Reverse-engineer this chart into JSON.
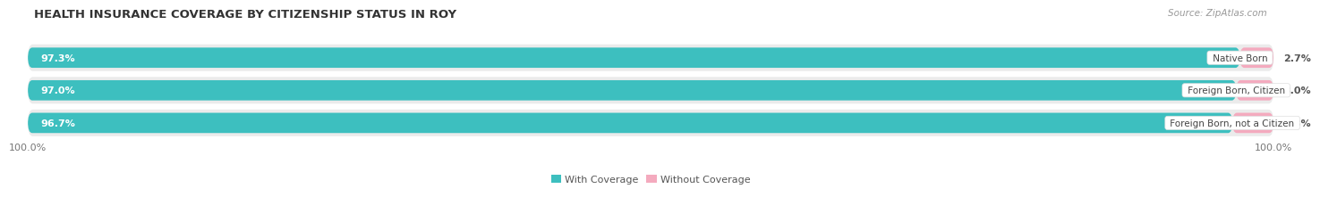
{
  "title": "HEALTH INSURANCE COVERAGE BY CITIZENSHIP STATUS IN ROY",
  "source": "Source: ZipAtlas.com",
  "categories": [
    "Native Born",
    "Foreign Born, Citizen",
    "Foreign Born, not a Citizen"
  ],
  "with_coverage": [
    97.3,
    97.0,
    96.7
  ],
  "without_coverage": [
    2.7,
    3.0,
    3.3
  ],
  "with_coverage_color": "#3DBFBF",
  "without_coverage_color": "#F4AABE",
  "bar_bg_color": "#EBEBEB",
  "title_fontsize": 9.5,
  "source_fontsize": 7.5,
  "bar_label_fontsize": 8,
  "category_fontsize": 7.5,
  "legend_fontsize": 8,
  "tick_fontsize": 8,
  "background_color": "#FFFFFF",
  "total": 100.0
}
